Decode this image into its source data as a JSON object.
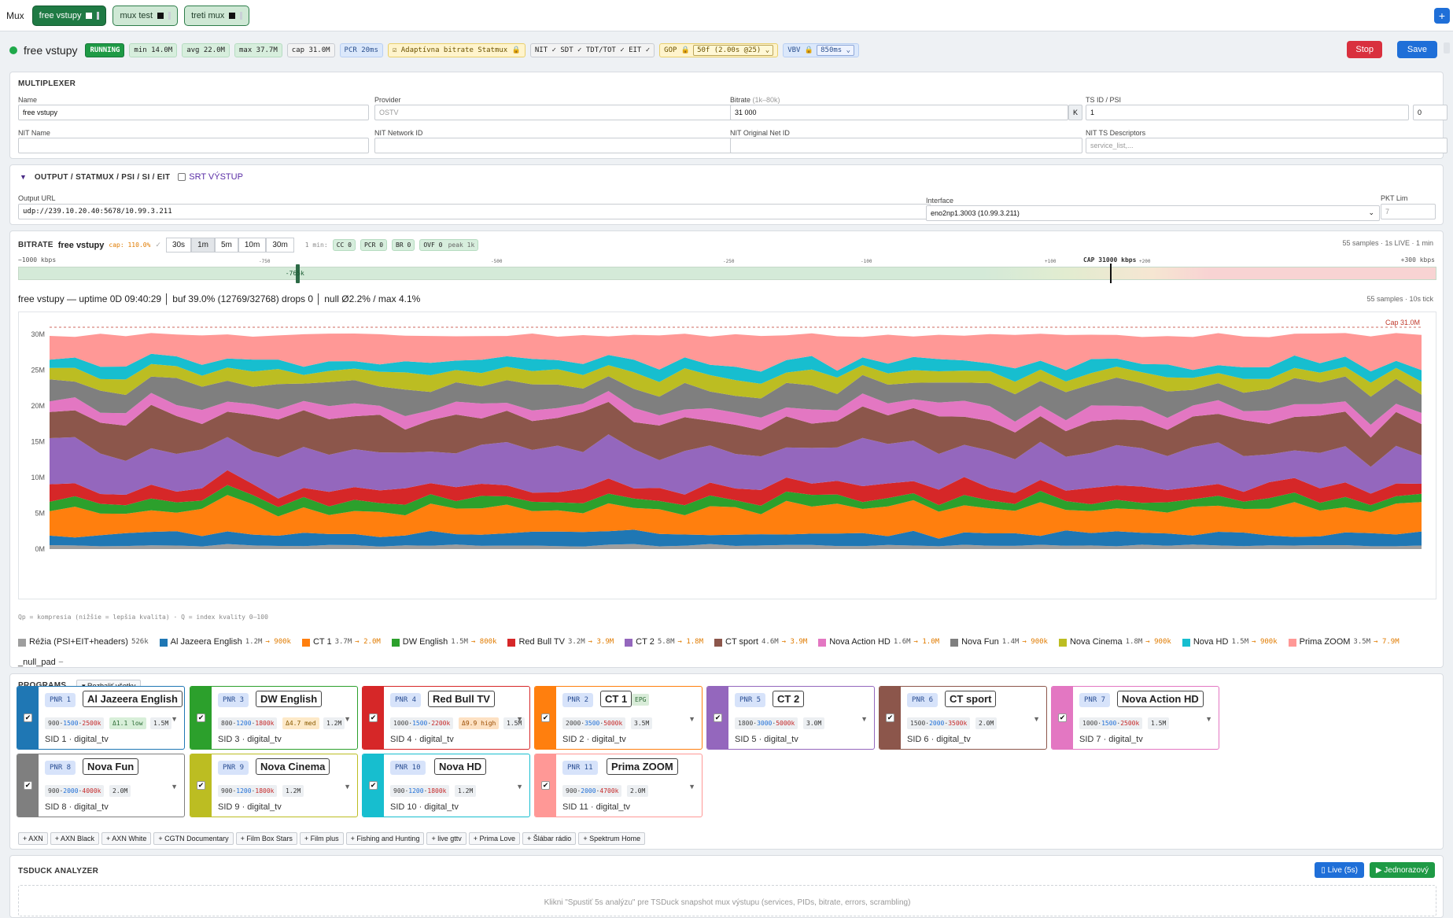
{
  "topbar": {
    "mux_label": "Mux",
    "tabs": [
      {
        "label": "free vstupy",
        "active": true
      },
      {
        "label": "mux test",
        "active": false
      },
      {
        "label": "treti mux",
        "active": false
      }
    ],
    "add_label": "+"
  },
  "status": {
    "name": "free vstupy",
    "state": "RUNNING",
    "min": "min 14.0M",
    "avg": "avg 22.0M",
    "max": "max 37.7M",
    "cap": "cap 31.0M",
    "pcr": "PCR 20ms",
    "adaptive": "Adaptívna bitrate Statmux",
    "tables": "NIT ✓  SDT ✓  TDT/TOT ✓  EIT ✓",
    "gop_label": "GOP",
    "gop_value": "50f (2.00s @25)",
    "vbv_label": "VBV",
    "vbv_value": "850ms",
    "stop": "Stop",
    "save": "Save"
  },
  "multiplexer": {
    "title": "MULTIPLEXER",
    "name_label": "Name",
    "name": "free vstupy",
    "provider_label": "Provider",
    "provider_ph": "OSTV",
    "bitrate_label": "Bitrate",
    "bitrate_hint": "(1k–80k)",
    "bitrate": "31 000",
    "bitrate_unit": "K",
    "tsid_label": "TS ID / PSI",
    "tsid": "1",
    "psi": "0",
    "nit_name_label": "NIT Name",
    "nit_net_label": "NIT Network ID",
    "nit_onid_label": "NIT Original Net ID",
    "nit_desc_label": "NIT TS Descriptors",
    "nit_desc_ph": "service_list,..."
  },
  "output": {
    "title": "OUTPUT / STATMUX / PSI / SI / EIT",
    "srt_label": "SRT VÝSTUP",
    "url_label": "Output URL",
    "url": "udp://239.10.20.40:5678/10.99.3.211",
    "iface_label": "Interface",
    "iface": "eno2np1.3003 (10.99.3.211)",
    "pkt_label": "PKT Lim",
    "pkt_ph": "7"
  },
  "bitrate": {
    "title": "BITRATE",
    "mux": "free vstupy",
    "cap_pct": "cap: 110.0%",
    "cap_check": "✓",
    "ranges": [
      "30s",
      "1m",
      "5m",
      "10m",
      "30m"
    ],
    "range_sel": "1m",
    "min_label": "1 min:",
    "cc": "CC 0",
    "pcr": "PCR 0",
    "br": "BR 0",
    "ovf": "OVF 0",
    "peak": "peak 1k",
    "samples_top": "55 samples · 1s LIVE · 1 min",
    "scale_left": "−1000 kbps",
    "scale_right": "+300 kbps",
    "scale_cap": "CAP 31000 kbps",
    "scale_ticks": [
      "-750",
      "-500",
      "-250",
      "-100",
      "+100",
      "+200"
    ],
    "marker": "-765k",
    "marker_value": -765,
    "info": "free vstupy — uptime 0D 09:40:29 │ buf 39.0% (12769/32768) drops 0 │ null Ø2.2% / max 4.1%",
    "samples": "55 samples · 10s tick",
    "footnote": "Qp = kompresia (nižšie = lepšia kvalita) · Q = index kvality 0–100"
  },
  "chart_data": {
    "type": "area",
    "title": "",
    "ylabel": "",
    "cap_label": "Cap 31.0M",
    "cap": 31,
    "ylim": [
      0,
      31
    ],
    "yticks": [
      "0M",
      "5M",
      "10M",
      "15M",
      "20M",
      "25M",
      "30M"
    ],
    "samples": 55,
    "stacked": true,
    "grid": false,
    "series": [
      {
        "name": "Réžia (PSI+EIT+headers)",
        "color": "#9e9e9e",
        "mean": 0.5
      },
      {
        "name": "Al Jazeera English",
        "color": "#1f77b4",
        "mean": 1.6
      },
      {
        "name": "CT 1",
        "color": "#ff7f0e",
        "mean": 3.7
      },
      {
        "name": "DW English",
        "color": "#2ca02c",
        "mean": 1.2
      },
      {
        "name": "Red Bull TV",
        "color": "#d62728",
        "mean": 1.8
      },
      {
        "name": "CT 2",
        "color": "#9467bd",
        "mean": 5.2
      },
      {
        "name": "CT sport",
        "color": "#8c564b",
        "mean": 4.4
      },
      {
        "name": "Nova Action HD",
        "color": "#e377c2",
        "mean": 1.6
      },
      {
        "name": "Nova Fun",
        "color": "#7f7f7f",
        "mean": 3.0
      },
      {
        "name": "Nova Cinema",
        "color": "#bcbd22",
        "mean": 1.8
      },
      {
        "name": "Nova HD",
        "color": "#17becf",
        "mean": 1.4
      },
      {
        "name": "Prima ZOOM",
        "color": "#ff9896",
        "mean": 3.8
      }
    ]
  },
  "legend": [
    {
      "name": "Réžia (PSI+EIT+headers)",
      "val": "526k",
      "to": "",
      "color": "#9e9e9e"
    },
    {
      "name": "Al Jazeera English",
      "val": "1.2M",
      "to": "→ 900k",
      "color": "#1f77b4"
    },
    {
      "name": "CT 1",
      "val": "3.7M",
      "to": "→ 2.0M",
      "color": "#ff7f0e"
    },
    {
      "name": "DW English",
      "val": "1.5M",
      "to": "→ 800k",
      "color": "#2ca02c"
    },
    {
      "name": "Red Bull TV",
      "val": "3.2M",
      "to": "→ 3.9M",
      "color": "#d62728"
    },
    {
      "name": "CT 2",
      "val": "5.8M",
      "to": "→ 1.8M",
      "color": "#9467bd"
    },
    {
      "name": "CT sport",
      "val": "4.6M",
      "to": "→ 3.9M",
      "color": "#8c564b"
    },
    {
      "name": "Nova Action HD",
      "val": "1.6M",
      "to": "→ 1.0M",
      "color": "#e377c2"
    },
    {
      "name": "Nova Fun",
      "val": "1.4M",
      "to": "→ 900k",
      "color": "#7f7f7f"
    },
    {
      "name": "Nova Cinema",
      "val": "1.8M",
      "to": "→ 900k",
      "color": "#bcbd22"
    },
    {
      "name": "Nova HD",
      "val": "1.5M",
      "to": "→ 900k",
      "color": "#17becf"
    },
    {
      "name": "Prima ZOOM",
      "val": "3.5M",
      "to": "→ 7.9M",
      "color": "#ff9896"
    },
    {
      "name": "_null_pad",
      "val": "–",
      "to": "",
      "color": ""
    }
  ],
  "programs": {
    "title": "PROGRAMS",
    "expand": "▾ Rozbaliť všetky",
    "cards": [
      {
        "pnr": "PNR 1",
        "name": "Al Jazeera English",
        "lo": "900",
        "mid": "1500",
        "hi": "2500k",
        "qp": "Δ1.1 low",
        "qp_type": "low",
        "mb": "1.5M",
        "sid": "SID 1 · digital_tv",
        "color": "#1f77b4",
        "epg": ""
      },
      {
        "pnr": "PNR 3",
        "name": "DW English",
        "lo": "800",
        "mid": "1200",
        "hi": "1800k",
        "qp": "Δ4.7 med",
        "qp_type": "med",
        "mb": "1.2M",
        "sid": "SID 3 · digital_tv",
        "color": "#2ca02c",
        "epg": ""
      },
      {
        "pnr": "PNR 4",
        "name": "Red Bull TV",
        "lo": "1000",
        "mid": "1500",
        "hi": "2200k",
        "qp": "Δ9.9 high",
        "qp_type": "high",
        "mb": "1.5M",
        "sid": "SID 4 · digital_tv",
        "color": "#d62728",
        "epg": ""
      },
      {
        "pnr": "PNR 2",
        "name": "CT 1",
        "lo": "2000",
        "mid": "3500",
        "hi": "5000k",
        "qp": "",
        "qp_type": "",
        "mb": "3.5M",
        "sid": "SID 2 · digital_tv",
        "color": "#ff7f0e",
        "epg": "EPG"
      },
      {
        "pnr": "PNR 5",
        "name": "CT 2",
        "lo": "1800",
        "mid": "3000",
        "hi": "5000k",
        "qp": "",
        "qp_type": "",
        "mb": "3.0M",
        "sid": "SID 5 · digital_tv",
        "color": "#9467bd",
        "epg": ""
      },
      {
        "pnr": "PNR 6",
        "name": "CT sport",
        "lo": "1500",
        "mid": "2000",
        "hi": "3500k",
        "qp": "",
        "qp_type": "",
        "mb": "2.0M",
        "sid": "SID 6 · digital_tv",
        "color": "#8c564b",
        "epg": ""
      },
      {
        "pnr": "PNR 7",
        "name": "Nova Action HD",
        "lo": "1000",
        "mid": "1500",
        "hi": "2500k",
        "qp": "",
        "qp_type": "",
        "mb": "1.5M",
        "sid": "SID 7 · digital_tv",
        "color": "#e377c2",
        "epg": ""
      },
      {
        "pnr": "PNR 8",
        "name": "Nova Fun",
        "lo": "900",
        "mid": "2000",
        "hi": "4000k",
        "qp": "",
        "qp_type": "",
        "mb": "2.0M",
        "sid": "SID 8 · digital_tv",
        "color": "#7f7f7f",
        "epg": ""
      },
      {
        "pnr": "PNR 9",
        "name": "Nova Cinema",
        "lo": "900",
        "mid": "1200",
        "hi": "1800k",
        "qp": "",
        "qp_type": "",
        "mb": "1.2M",
        "sid": "SID 9 · digital_tv",
        "color": "#bcbd22",
        "epg": ""
      },
      {
        "pnr": "PNR 10",
        "name": "Nova HD",
        "lo": "900",
        "mid": "1200",
        "hi": "1800k",
        "qp": "",
        "qp_type": "",
        "mb": "1.2M",
        "sid": "SID 10 · digital_tv",
        "color": "#17becf",
        "epg": ""
      },
      {
        "pnr": "PNR 11",
        "name": "Prima ZOOM",
        "lo": "900",
        "mid": "2000",
        "hi": "4700k",
        "qp": "",
        "qp_type": "",
        "mb": "2.0M",
        "sid": "SID 11 · digital_tv",
        "color": "#ff9896",
        "epg": ""
      }
    ],
    "add": [
      "+ AXN",
      "+ AXN Black",
      "+ AXN White",
      "+ CGTN Documentary",
      "+ Film Box Stars",
      "+ Film plus",
      "+ Fishing and Hunting",
      "+ live gttv",
      "+ Prima Love",
      "+ Šlábar rádio",
      "+ Spektrum Home"
    ]
  },
  "tsduck": {
    "title": "TSDUCK ANALYZER",
    "live": "▯ Live (5s)",
    "once": "▶ Jednorazový",
    "hint": "Klikni \"Spustiť 5s analýzu\" pre TSDuck snapshot mux výstupu (services, PIDs, bitrate, errors, scrambling)"
  }
}
